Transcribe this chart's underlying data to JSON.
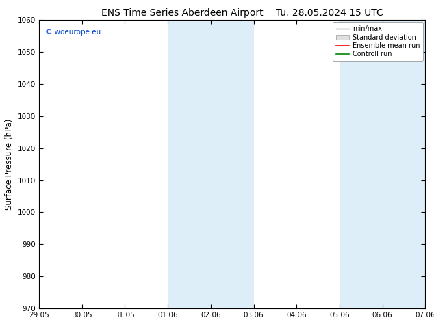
{
  "title_left": "ENS Time Series Aberdeen Airport",
  "title_right": "Tu. 28.05.2024 15 UTC",
  "ylabel": "Surface Pressure (hPa)",
  "ylim": [
    970,
    1060
  ],
  "yticks": [
    970,
    980,
    990,
    1000,
    1010,
    1020,
    1030,
    1040,
    1050,
    1060
  ],
  "x_labels": [
    "29.05",
    "30.05",
    "31.05",
    "01.06",
    "02.06",
    "03.06",
    "04.06",
    "05.06",
    "06.06",
    "07.06"
  ],
  "x_values": [
    0,
    1,
    2,
    3,
    4,
    5,
    6,
    7,
    8,
    9
  ],
  "shaded_bands": [
    {
      "xmin": 3.0,
      "xmax": 5.0
    },
    {
      "xmin": 7.0,
      "xmax": 9.0
    }
  ],
  "shade_color": "#ddeef8",
  "watermark": "© woeurope.eu",
  "legend_entries": [
    "min/max",
    "Standard deviation",
    "Ensemble mean run",
    "Controll run"
  ],
  "legend_colors": [
    "#888888",
    "#cccccc",
    "#ff0000",
    "#008800"
  ],
  "background_color": "#ffffff",
  "plot_bg_color": "#ffffff",
  "title_fontsize": 10,
  "tick_fontsize": 7.5,
  "ylabel_fontsize": 8.5,
  "watermark_color": "#0044cc"
}
